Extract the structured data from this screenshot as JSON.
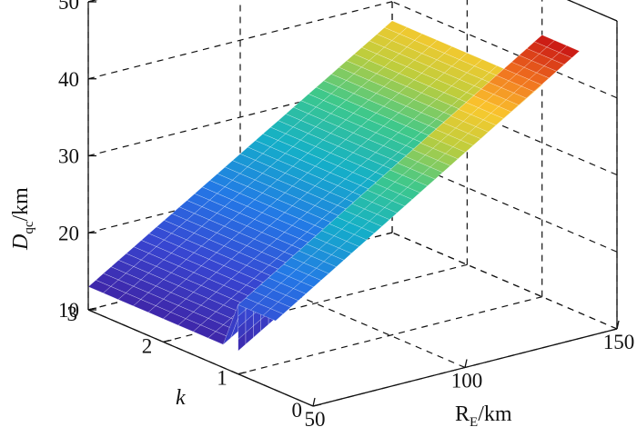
{
  "chart_data": {
    "type": "surface",
    "title": "",
    "xlabel": {
      "main": "R",
      "sub": "E",
      "unit": "/km"
    },
    "ylabel": {
      "main": "k",
      "sub": "",
      "unit": ""
    },
    "zlabel": {
      "main": "D",
      "sub": "qc",
      "unit": "/km"
    },
    "x_ticks": [
      "50",
      "100",
      "150"
    ],
    "y_ticks": [
      "0",
      "1",
      "2",
      "3"
    ],
    "z_ticks": [
      "10",
      "20",
      "30",
      "40",
      "50"
    ],
    "xlim": [
      50,
      150
    ],
    "ylim": [
      0,
      3
    ],
    "zlim": [
      10,
      50
    ],
    "grid": true,
    "colormap": "parula-jet",
    "surface": {
      "x_range": [
        50,
        150
      ],
      "y_range": [
        0.5,
        3
      ],
      "threshold_k": 1,
      "z_low_k_start": 19,
      "z_low_k_end": 44,
      "z_high_k_start": 13,
      "z_high_k_end": 37.5
    }
  }
}
